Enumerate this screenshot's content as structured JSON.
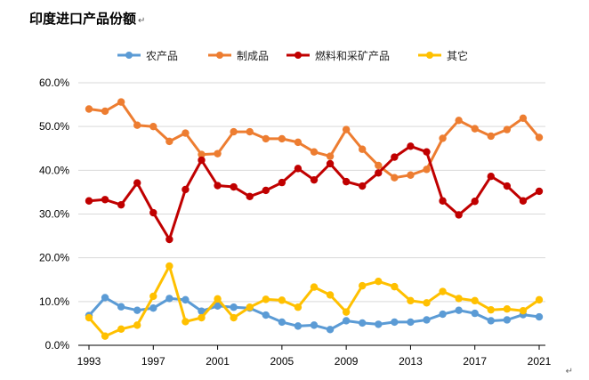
{
  "chart_data": {
    "type": "line",
    "title": "印度进口产品份额",
    "title_mark": "↵",
    "corner_mark": "↵",
    "x": [
      1993,
      1994,
      1995,
      1996,
      1997,
      1998,
      1999,
      2000,
      2001,
      2002,
      2003,
      2004,
      2005,
      2006,
      2007,
      2008,
      2009,
      2010,
      2011,
      2012,
      2013,
      2014,
      2015,
      2016,
      2017,
      2018,
      2019,
      2020,
      2021
    ],
    "x_ticks": [
      1993,
      1997,
      2001,
      2005,
      2009,
      2013,
      2017,
      2021
    ],
    "ylim": [
      0,
      60
    ],
    "y_ticks": [
      0,
      10,
      20,
      30,
      40,
      50,
      60
    ],
    "y_tick_labels": [
      "0.0%",
      "10.0%",
      "20.0%",
      "30.0%",
      "40.0%",
      "50.0%",
      "60.0%"
    ],
    "grid": "horizontal",
    "legend_position": "top",
    "series": [
      {
        "name": "农产品",
        "color": "#5b9bd5",
        "values": [
          6.8,
          10.9,
          8.8,
          8.0,
          8.5,
          10.7,
          10.4,
          7.8,
          9.0,
          8.7,
          8.5,
          6.9,
          5.3,
          4.4,
          4.6,
          3.6,
          5.6,
          5.1,
          4.8,
          5.3,
          5.3,
          5.8,
          7.1,
          8.0,
          7.3,
          5.6,
          5.8,
          7.0,
          6.5
        ]
      },
      {
        "name": "制成品",
        "color": "#ed7d31",
        "values": [
          54.0,
          53.5,
          55.6,
          50.3,
          50.0,
          46.6,
          48.5,
          43.6,
          43.8,
          48.8,
          48.8,
          47.2,
          47.2,
          46.4,
          44.2,
          43.2,
          49.3,
          44.8,
          41.1,
          38.3,
          38.9,
          40.2,
          47.3,
          51.4,
          49.5,
          47.8,
          49.3,
          51.9,
          47.5
        ]
      },
      {
        "name": "燃料和采矿产品",
        "color": "#c00000",
        "values": [
          33.0,
          33.3,
          32.1,
          37.1,
          30.3,
          24.2,
          35.6,
          42.3,
          36.5,
          36.2,
          34.0,
          35.4,
          37.2,
          40.4,
          37.8,
          41.5,
          37.4,
          36.4,
          39.4,
          43.0,
          45.5,
          44.2,
          33.0,
          29.8,
          32.9,
          38.6,
          36.4,
          33.0,
          35.2
        ]
      },
      {
        "name": "其它",
        "color": "#ffc000",
        "values": [
          6.3,
          2.1,
          3.7,
          4.6,
          11.2,
          18.1,
          5.4,
          6.3,
          10.6,
          6.3,
          8.7,
          10.5,
          10.3,
          8.7,
          13.3,
          11.5,
          7.6,
          13.6,
          14.6,
          13.4,
          10.2,
          9.7,
          12.3,
          10.7,
          10.2,
          8.1,
          8.3,
          7.9,
          10.4
        ]
      }
    ]
  }
}
